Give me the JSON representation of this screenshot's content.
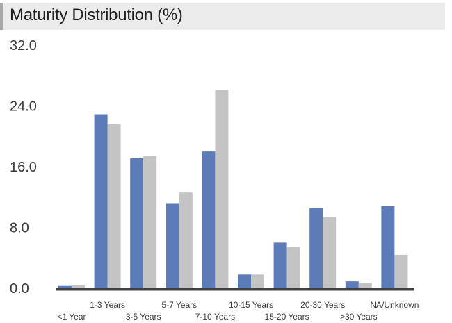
{
  "title": "Maturity Distribution (%)",
  "colors": {
    "series_a": "#5b7cb8",
    "series_b": "#c4c4c4",
    "axis": "#3f3f3f",
    "title_bg": "#ebebeb",
    "accent": "#a9a9a9"
  },
  "chart_data": {
    "type": "bar",
    "title": "Maturity Distribution (%)",
    "xlabel": "",
    "ylabel": "",
    "ylim": [
      0,
      32
    ],
    "yticks": [
      "0.0",
      "8.0",
      "16.0",
      "24.0",
      "32.0"
    ],
    "grid": false,
    "legend": "none",
    "categories": [
      "<1 Year",
      "1-3 Years",
      "3-5 Years",
      "5-7 Years",
      "7-10 Years",
      "10-15 Years",
      "15-20 Years",
      "20-30 Years",
      ">30 Years",
      "NA/Unknown"
    ],
    "series": [
      {
        "values": [
          0.3,
          22.9,
          17.1,
          11.2,
          18.0,
          1.8,
          6.0,
          10.6,
          0.9,
          10.8
        ]
      },
      {
        "values": [
          0.4,
          21.6,
          17.4,
          12.6,
          26.1,
          1.8,
          5.4,
          9.4,
          0.7,
          4.4
        ]
      }
    ]
  }
}
